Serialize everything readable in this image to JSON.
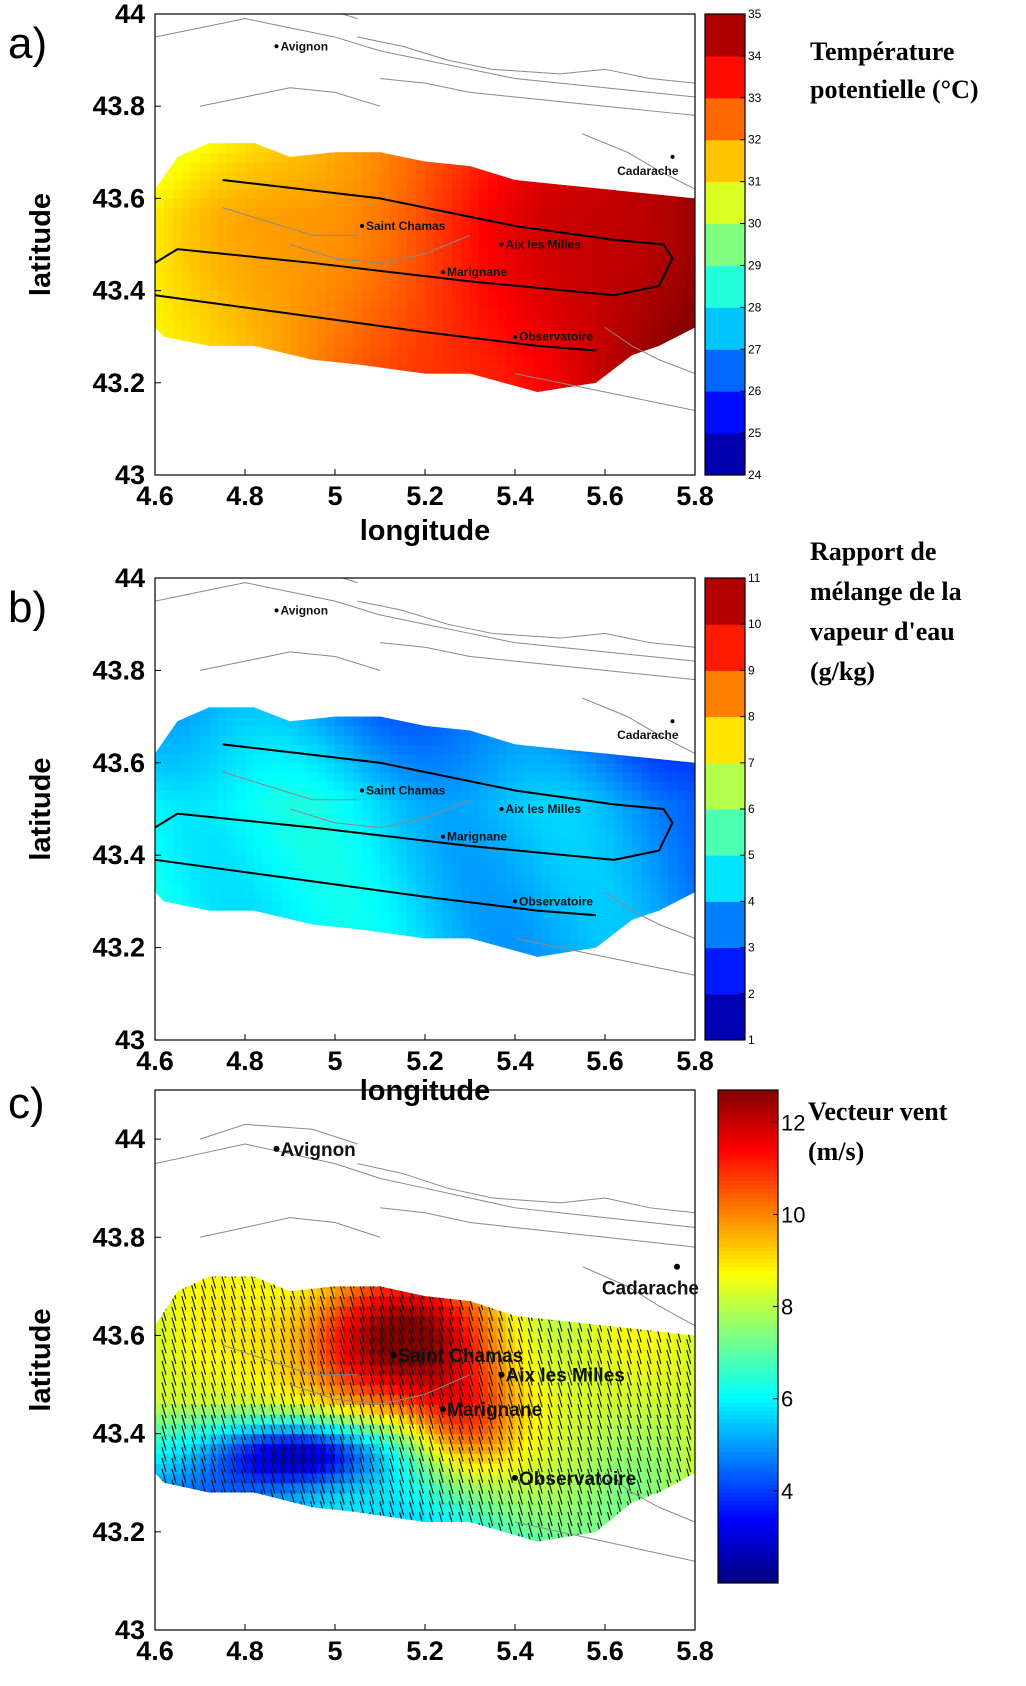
{
  "chart_data": [
    {
      "type": "heatmap",
      "panel_label": "a)",
      "title": "Température potentielle (°C)",
      "title_lines": [
        "Température",
        "potentielle (°C)"
      ],
      "xlabel": "longitude",
      "ylabel": "latitude",
      "xlim": [
        4.6,
        5.8
      ],
      "ylim": [
        43,
        44
      ],
      "x_ticks": [
        "4.6",
        "4.8",
        "5",
        "5.2",
        "5.4",
        "5.6",
        "5.8"
      ],
      "y_ticks": [
        "43",
        "43.2",
        "43.4",
        "43.6",
        "43.8",
        "44"
      ],
      "colorbar": {
        "min": 24,
        "max": 35,
        "ticks": [
          "24",
          "25",
          "26",
          "27",
          "28",
          "29",
          "30",
          "31",
          "32",
          "33",
          "34",
          "35"
        ],
        "colormap": "jet"
      },
      "field_description": "values increase from about 31 in the west to about 35 in the east",
      "field": {
        "west_value": 31,
        "east_value": 35
      },
      "cities": [
        {
          "name": "Avignon",
          "lon": 4.87,
          "lat": 43.93
        },
        {
          "name": "Cadarache",
          "lon": 5.75,
          "lat": 43.69
        },
        {
          "name": "Saint Chamas",
          "lon": 5.06,
          "lat": 43.54
        },
        {
          "name": "Aix les Milles",
          "lon": 5.37,
          "lat": 43.5
        },
        {
          "name": "Marignane",
          "lon": 5.24,
          "lat": 43.44
        },
        {
          "name": "Observatoire",
          "lon": 5.4,
          "lat": 43.3
        }
      ]
    },
    {
      "type": "heatmap",
      "panel_label": "b)",
      "title": "Rapport de mélange de la vapeur d'eau (g/kg)",
      "title_lines": [
        "Rapport de",
        "mélange de la",
        "vapeur d'eau",
        "(g/kg)"
      ],
      "xlabel": "longitude",
      "ylabel": "latitude",
      "xlim": [
        4.6,
        5.8
      ],
      "ylim": [
        43,
        44
      ],
      "x_ticks": [
        "4.6",
        "4.8",
        "5",
        "5.2",
        "5.4",
        "5.6",
        "5.8"
      ],
      "y_ticks": [
        "43",
        "43.2",
        "43.4",
        "43.6",
        "43.8",
        "44"
      ],
      "colorbar": {
        "min": 1,
        "max": 11,
        "ticks": [
          "1",
          "2",
          "3",
          "4",
          "5",
          "6",
          "7",
          "8",
          "9",
          "10",
          "11"
        ],
        "colormap": "jet"
      },
      "field": {
        "west_value": 5,
        "east_value": 3.6
      },
      "cities": [
        {
          "name": "Avignon",
          "lon": 4.87,
          "lat": 43.93
        },
        {
          "name": "Cadarache",
          "lon": 5.75,
          "lat": 43.69
        },
        {
          "name": "Saint Chamas",
          "lon": 5.06,
          "lat": 43.54
        },
        {
          "name": "Aix les Milles",
          "lon": 5.37,
          "lat": 43.5
        },
        {
          "name": "Marignane",
          "lon": 5.24,
          "lat": 43.44
        },
        {
          "name": "Observatoire",
          "lon": 5.4,
          "lat": 43.3
        }
      ]
    },
    {
      "type": "heatmap",
      "panel_label": "c)",
      "title": "Vecteur vent (m/s)",
      "title_lines": [
        "Vecteur vent",
        "(m/s)"
      ],
      "xlabel": "",
      "ylabel": "latitude",
      "xlim": [
        4.6,
        5.8
      ],
      "ylim": [
        43,
        44.1
      ],
      "x_ticks": [
        "4.6",
        "4.8",
        "5",
        "5.2",
        "5.4",
        "5.6",
        "5.8"
      ],
      "y_ticks": [
        "43",
        "43.2",
        "43.4",
        "43.6",
        "43.8",
        "44"
      ],
      "colorbar": {
        "min": 2,
        "max": 12.7,
        "ticks": [
          "4",
          "6",
          "8",
          "10",
          "12"
        ],
        "colormap": "jet"
      },
      "vectors": true,
      "cities": [
        {
          "name": "Avignon",
          "lon": 4.87,
          "lat": 43.98
        },
        {
          "name": "Cadarache",
          "lon": 5.76,
          "lat": 43.74
        },
        {
          "name": "Saint Chamas",
          "lon": 5.13,
          "lat": 43.56
        },
        {
          "name": "Aix les Milles",
          "lon": 5.37,
          "lat": 43.52
        },
        {
          "name": "Marignane",
          "lon": 5.24,
          "lat": 43.45
        },
        {
          "name": "Observatoire",
          "lon": 5.4,
          "lat": 43.31
        }
      ]
    }
  ]
}
